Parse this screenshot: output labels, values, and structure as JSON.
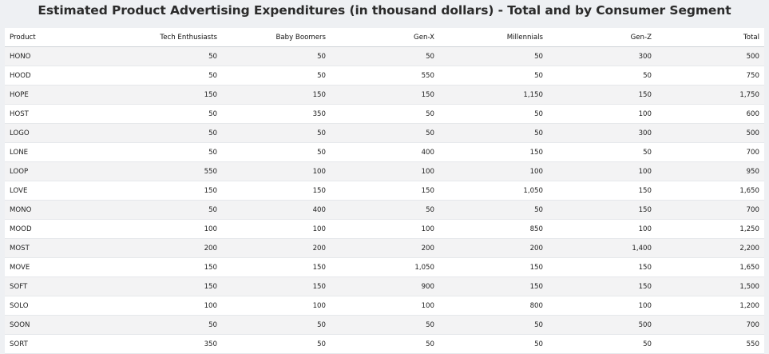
{
  "chart_data": {
    "type": "table",
    "title": "Estimated Product Advertising Expenditures (in thousand dollars) - Total and by Consumer Segment",
    "columns": [
      "Product",
      "Tech Enthusiasts",
      "Baby Boomers",
      "Gen-X",
      "Millennials",
      "Gen-Z",
      "Total"
    ],
    "rows": [
      [
        "HONO",
        "50",
        "50",
        "50",
        "50",
        "300",
        "500"
      ],
      [
        "HOOD",
        "50",
        "50",
        "550",
        "50",
        "50",
        "750"
      ],
      [
        "HOPE",
        "150",
        "150",
        "150",
        "1,150",
        "150",
        "1,750"
      ],
      [
        "HOST",
        "50",
        "350",
        "50",
        "50",
        "100",
        "600"
      ],
      [
        "LOGO",
        "50",
        "50",
        "50",
        "50",
        "300",
        "500"
      ],
      [
        "LONE",
        "50",
        "50",
        "400",
        "150",
        "50",
        "700"
      ],
      [
        "LOOP",
        "550",
        "100",
        "100",
        "100",
        "100",
        "950"
      ],
      [
        "LOVE",
        "150",
        "150",
        "150",
        "1,050",
        "150",
        "1,650"
      ],
      [
        "MONO",
        "50",
        "400",
        "50",
        "50",
        "150",
        "700"
      ],
      [
        "MOOD",
        "100",
        "100",
        "100",
        "850",
        "100",
        "1,250"
      ],
      [
        "MOST",
        "200",
        "200",
        "200",
        "200",
        "1,400",
        "2,200"
      ],
      [
        "MOVE",
        "150",
        "150",
        "1,050",
        "150",
        "150",
        "1,650"
      ],
      [
        "SOFT",
        "150",
        "150",
        "900",
        "150",
        "150",
        "1,500"
      ],
      [
        "SOLO",
        "100",
        "100",
        "100",
        "800",
        "100",
        "1,200"
      ],
      [
        "SOON",
        "50",
        "50",
        "50",
        "50",
        "500",
        "700"
      ],
      [
        "SORT",
        "350",
        "50",
        "50",
        "50",
        "50",
        "550"
      ]
    ]
  }
}
